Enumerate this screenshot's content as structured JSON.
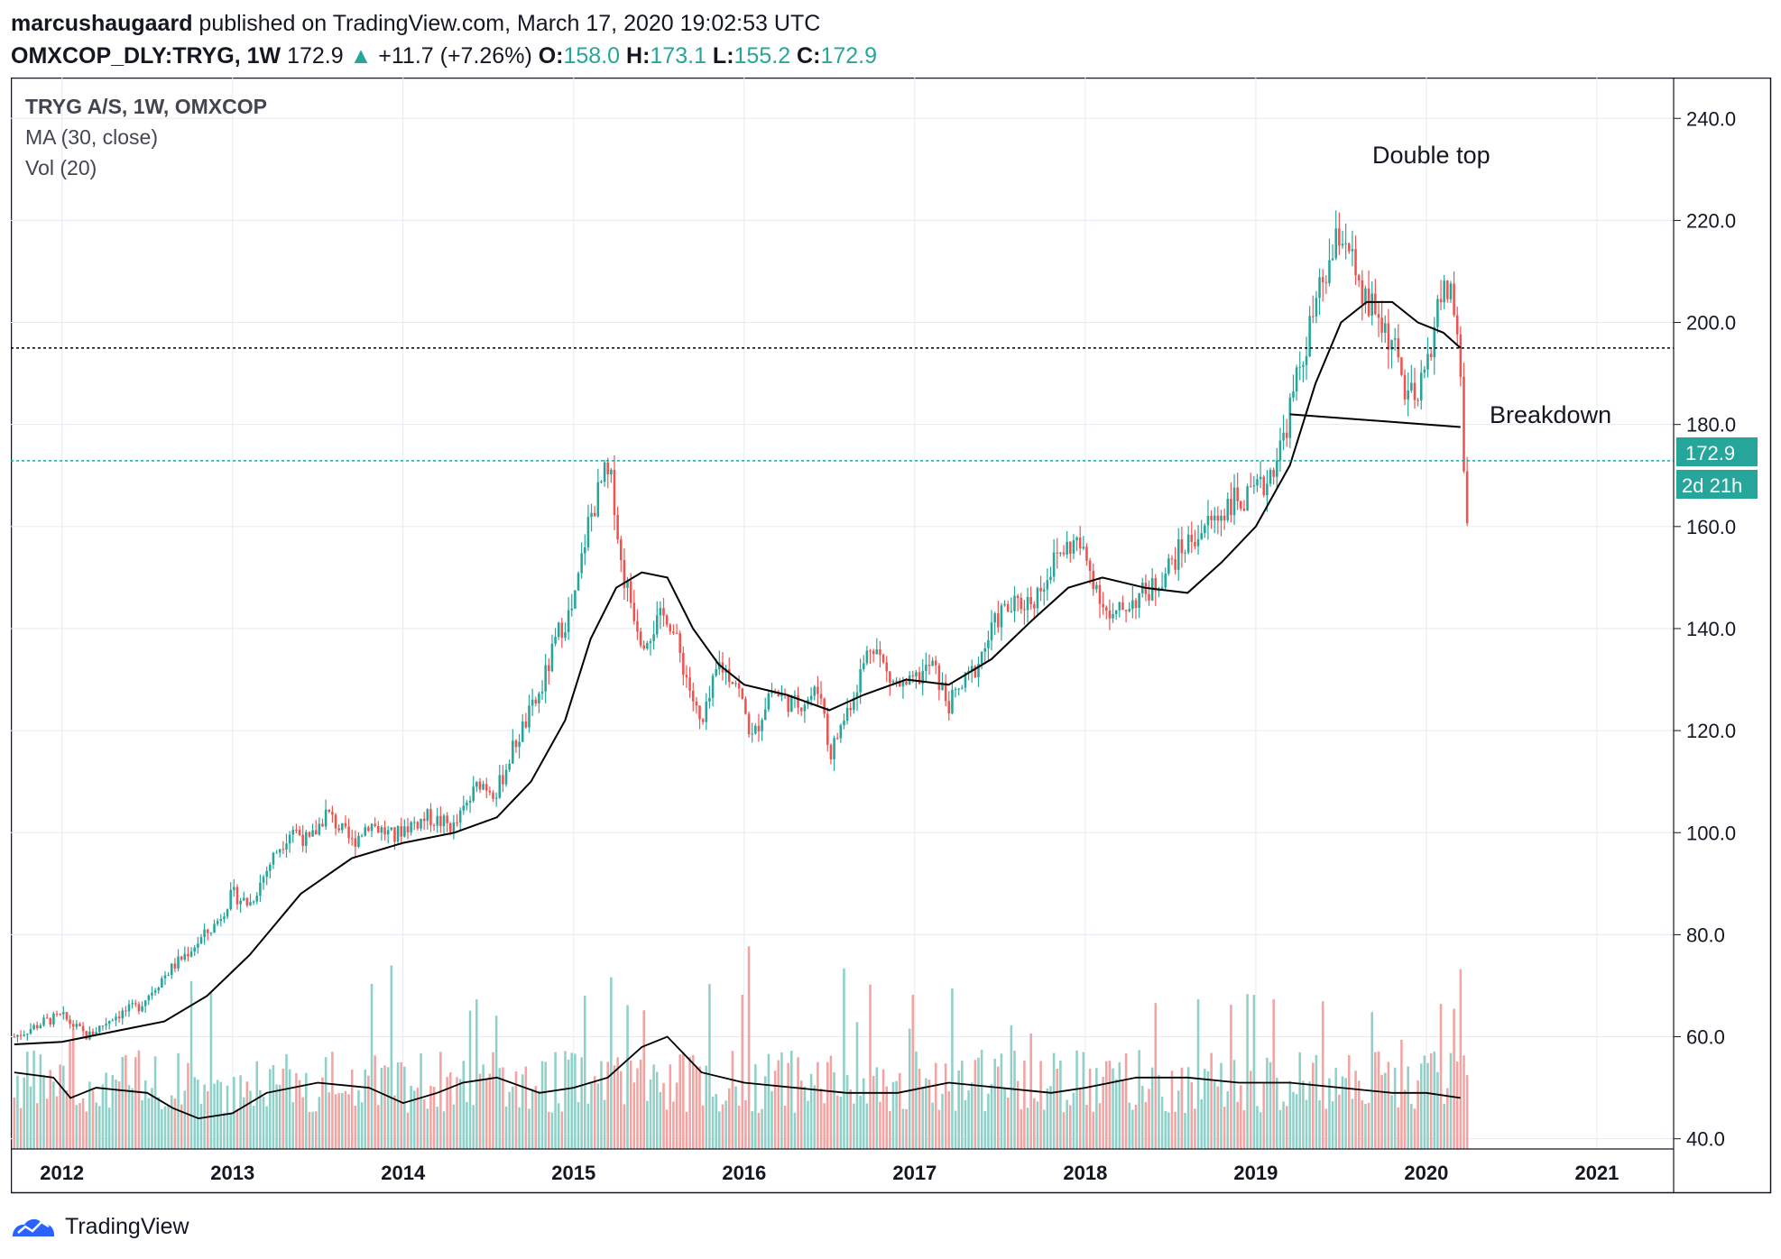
{
  "header": {
    "author": "marcushaugaard",
    "published_text": "published on TradingView.com, March 17, 2020 19:02:53 UTC",
    "symbol": "OMXCOP_DLY:TRYG, 1W",
    "last": "172.9",
    "change": "+11.7 (+7.26%)",
    "o_label": "O:",
    "o_value": "158.0",
    "h_label": "H:",
    "h_value": "173.1",
    "l_label": "L:",
    "l_value": "155.2",
    "c_label": "C:",
    "c_value": "172.9"
  },
  "legend": {
    "line1": "TRYG A/S, 1W, OMXCOP",
    "line2": "MA (30, close)",
    "line3": "Vol (20)"
  },
  "annotations": {
    "double_top": "Double top",
    "breakdown": "Breakdown"
  },
  "price_tag": "172.9",
  "time_tag": "2d 21h",
  "footer": {
    "brand": "TradingView",
    "logo_icon": "tradingview-logo-icon"
  },
  "colors": {
    "up": "#26a69a",
    "down": "#ef5350",
    "vol_up": "#8fd0c8",
    "vol_down": "#f3a3a1",
    "ma": "#000000",
    "grid": "#e6eaf0"
  },
  "chart_data": {
    "type": "candlestick",
    "title": "TRYG A/S, 1W, OMXCOP",
    "y_axis": {
      "ticks": [
        40,
        60,
        80,
        100,
        120,
        140,
        160,
        180,
        200,
        220,
        240
      ],
      "range": [
        38,
        248
      ]
    },
    "x_axis": {
      "ticks": [
        "2012",
        "2013",
        "2014",
        "2015",
        "2016",
        "2017",
        "2018",
        "2019",
        "2020",
        "2021"
      ],
      "range": [
        2011.7,
        2021.45
      ]
    },
    "horizontal_lines": [
      {
        "value": 195,
        "style": "dotted",
        "color": "#000000"
      },
      {
        "value": 172.9,
        "style": "dotted",
        "color": "#26a69a"
      }
    ],
    "trendline": {
      "from": [
        2019.2,
        182
      ],
      "to": [
        2020.2,
        179.5
      ]
    },
    "price_path": [
      [
        2011.72,
        60
      ],
      [
        2011.9,
        63
      ],
      [
        2012.0,
        64
      ],
      [
        2012.15,
        60
      ],
      [
        2012.3,
        64
      ],
      [
        2012.45,
        66
      ],
      [
        2012.6,
        72
      ],
      [
        2012.75,
        77
      ],
      [
        2012.9,
        82
      ],
      [
        2013.0,
        88
      ],
      [
        2013.1,
        86
      ],
      [
        2013.25,
        96
      ],
      [
        2013.35,
        101
      ],
      [
        2013.45,
        98
      ],
      [
        2013.55,
        104
      ],
      [
        2013.7,
        98
      ],
      [
        2013.8,
        102
      ],
      [
        2013.95,
        99
      ],
      [
        2014.0,
        101
      ],
      [
        2014.15,
        103
      ],
      [
        2014.3,
        101
      ],
      [
        2014.45,
        110
      ],
      [
        2014.55,
        108
      ],
      [
        2014.65,
        117
      ],
      [
        2014.8,
        127
      ],
      [
        2014.92,
        140
      ],
      [
        2015.0,
        144
      ],
      [
        2015.08,
        160
      ],
      [
        2015.18,
        170
      ],
      [
        2015.23,
        168
      ],
      [
        2015.28,
        152
      ],
      [
        2015.4,
        138
      ],
      [
        2015.55,
        143
      ],
      [
        2015.65,
        132
      ],
      [
        2015.75,
        120
      ],
      [
        2015.85,
        133
      ],
      [
        2015.95,
        130
      ],
      [
        2016.05,
        118
      ],
      [
        2016.15,
        128
      ],
      [
        2016.3,
        125
      ],
      [
        2016.45,
        128
      ],
      [
        2016.5,
        115
      ],
      [
        2016.65,
        128
      ],
      [
        2016.75,
        138
      ],
      [
        2016.85,
        130
      ],
      [
        2016.95,
        128
      ],
      [
        2017.1,
        133
      ],
      [
        2017.2,
        125
      ],
      [
        2017.35,
        132
      ],
      [
        2017.5,
        143
      ],
      [
        2017.7,
        146
      ],
      [
        2017.85,
        155
      ],
      [
        2017.95,
        157
      ],
      [
        2018.05,
        150
      ],
      [
        2018.15,
        141
      ],
      [
        2018.25,
        145
      ],
      [
        2018.4,
        148
      ],
      [
        2018.55,
        155
      ],
      [
        2018.7,
        160
      ],
      [
        2018.78,
        162
      ],
      [
        2018.85,
        165
      ],
      [
        2018.95,
        165
      ],
      [
        2019.05,
        168
      ],
      [
        2019.15,
        176
      ],
      [
        2019.25,
        190
      ],
      [
        2019.35,
        203
      ],
      [
        2019.45,
        213
      ],
      [
        2019.5,
        218
      ],
      [
        2019.55,
        215
      ],
      [
        2019.6,
        205
      ],
      [
        2019.7,
        202
      ],
      [
        2019.8,
        196
      ],
      [
        2019.88,
        186
      ],
      [
        2019.95,
        184
      ],
      [
        2020.02,
        195
      ],
      [
        2020.08,
        205
      ],
      [
        2020.15,
        207
      ],
      [
        2020.2,
        190
      ],
      [
        2020.22,
        172
      ],
      [
        2020.24,
        160
      ],
      [
        2020.25,
        172.9
      ]
    ],
    "ma_path": [
      [
        2011.72,
        58.5
      ],
      [
        2012.0,
        59
      ],
      [
        2012.3,
        61
      ],
      [
        2012.6,
        63
      ],
      [
        2012.85,
        68
      ],
      [
        2013.1,
        76
      ],
      [
        2013.4,
        88
      ],
      [
        2013.7,
        95
      ],
      [
        2014.0,
        98
      ],
      [
        2014.3,
        100
      ],
      [
        2014.55,
        103
      ],
      [
        2014.75,
        110
      ],
      [
        2014.95,
        122
      ],
      [
        2015.1,
        138
      ],
      [
        2015.25,
        148
      ],
      [
        2015.4,
        151
      ],
      [
        2015.55,
        150
      ],
      [
        2015.7,
        140
      ],
      [
        2015.85,
        133
      ],
      [
        2016.0,
        129
      ],
      [
        2016.25,
        127
      ],
      [
        2016.5,
        124
      ],
      [
        2016.7,
        127
      ],
      [
        2016.95,
        130
      ],
      [
        2017.2,
        129
      ],
      [
        2017.45,
        134
      ],
      [
        2017.7,
        142
      ],
      [
        2017.9,
        148
      ],
      [
        2018.1,
        150
      ],
      [
        2018.35,
        148
      ],
      [
        2018.6,
        147
      ],
      [
        2018.8,
        153
      ],
      [
        2019.0,
        160
      ],
      [
        2019.2,
        172
      ],
      [
        2019.35,
        188
      ],
      [
        2019.5,
        200
      ],
      [
        2019.65,
        204
      ],
      [
        2019.8,
        204
      ],
      [
        2019.95,
        200
      ],
      [
        2020.1,
        198
      ],
      [
        2020.2,
        195
      ]
    ],
    "vol_ma_path": [
      [
        2011.72,
        53
      ],
      [
        2011.95,
        52
      ],
      [
        2012.05,
        48
      ],
      [
        2012.2,
        50
      ],
      [
        2012.5,
        49
      ],
      [
        2012.65,
        46
      ],
      [
        2012.8,
        44
      ],
      [
        2013.0,
        45
      ],
      [
        2013.2,
        49
      ],
      [
        2013.5,
        51
      ],
      [
        2013.8,
        50
      ],
      [
        2014.0,
        47
      ],
      [
        2014.2,
        49
      ],
      [
        2014.35,
        51
      ],
      [
        2014.55,
        52
      ],
      [
        2014.8,
        49
      ],
      [
        2015.0,
        50
      ],
      [
        2015.2,
        52
      ],
      [
        2015.4,
        58
      ],
      [
        2015.55,
        60
      ],
      [
        2015.75,
        53
      ],
      [
        2016.0,
        51
      ],
      [
        2016.3,
        50
      ],
      [
        2016.6,
        49
      ],
      [
        2016.9,
        49
      ],
      [
        2017.2,
        51
      ],
      [
        2017.5,
        50
      ],
      [
        2017.8,
        49
      ],
      [
        2018.0,
        50
      ],
      [
        2018.3,
        52
      ],
      [
        2018.6,
        52
      ],
      [
        2018.9,
        51
      ],
      [
        2019.2,
        51
      ],
      [
        2019.5,
        50
      ],
      [
        2019.8,
        49
      ],
      [
        2020.0,
        49
      ],
      [
        2020.2,
        48
      ]
    ],
    "axis_ticks_x_years": [
      2012,
      2013,
      2014,
      2015,
      2016,
      2017,
      2018,
      2019,
      2020,
      2021
    ]
  }
}
